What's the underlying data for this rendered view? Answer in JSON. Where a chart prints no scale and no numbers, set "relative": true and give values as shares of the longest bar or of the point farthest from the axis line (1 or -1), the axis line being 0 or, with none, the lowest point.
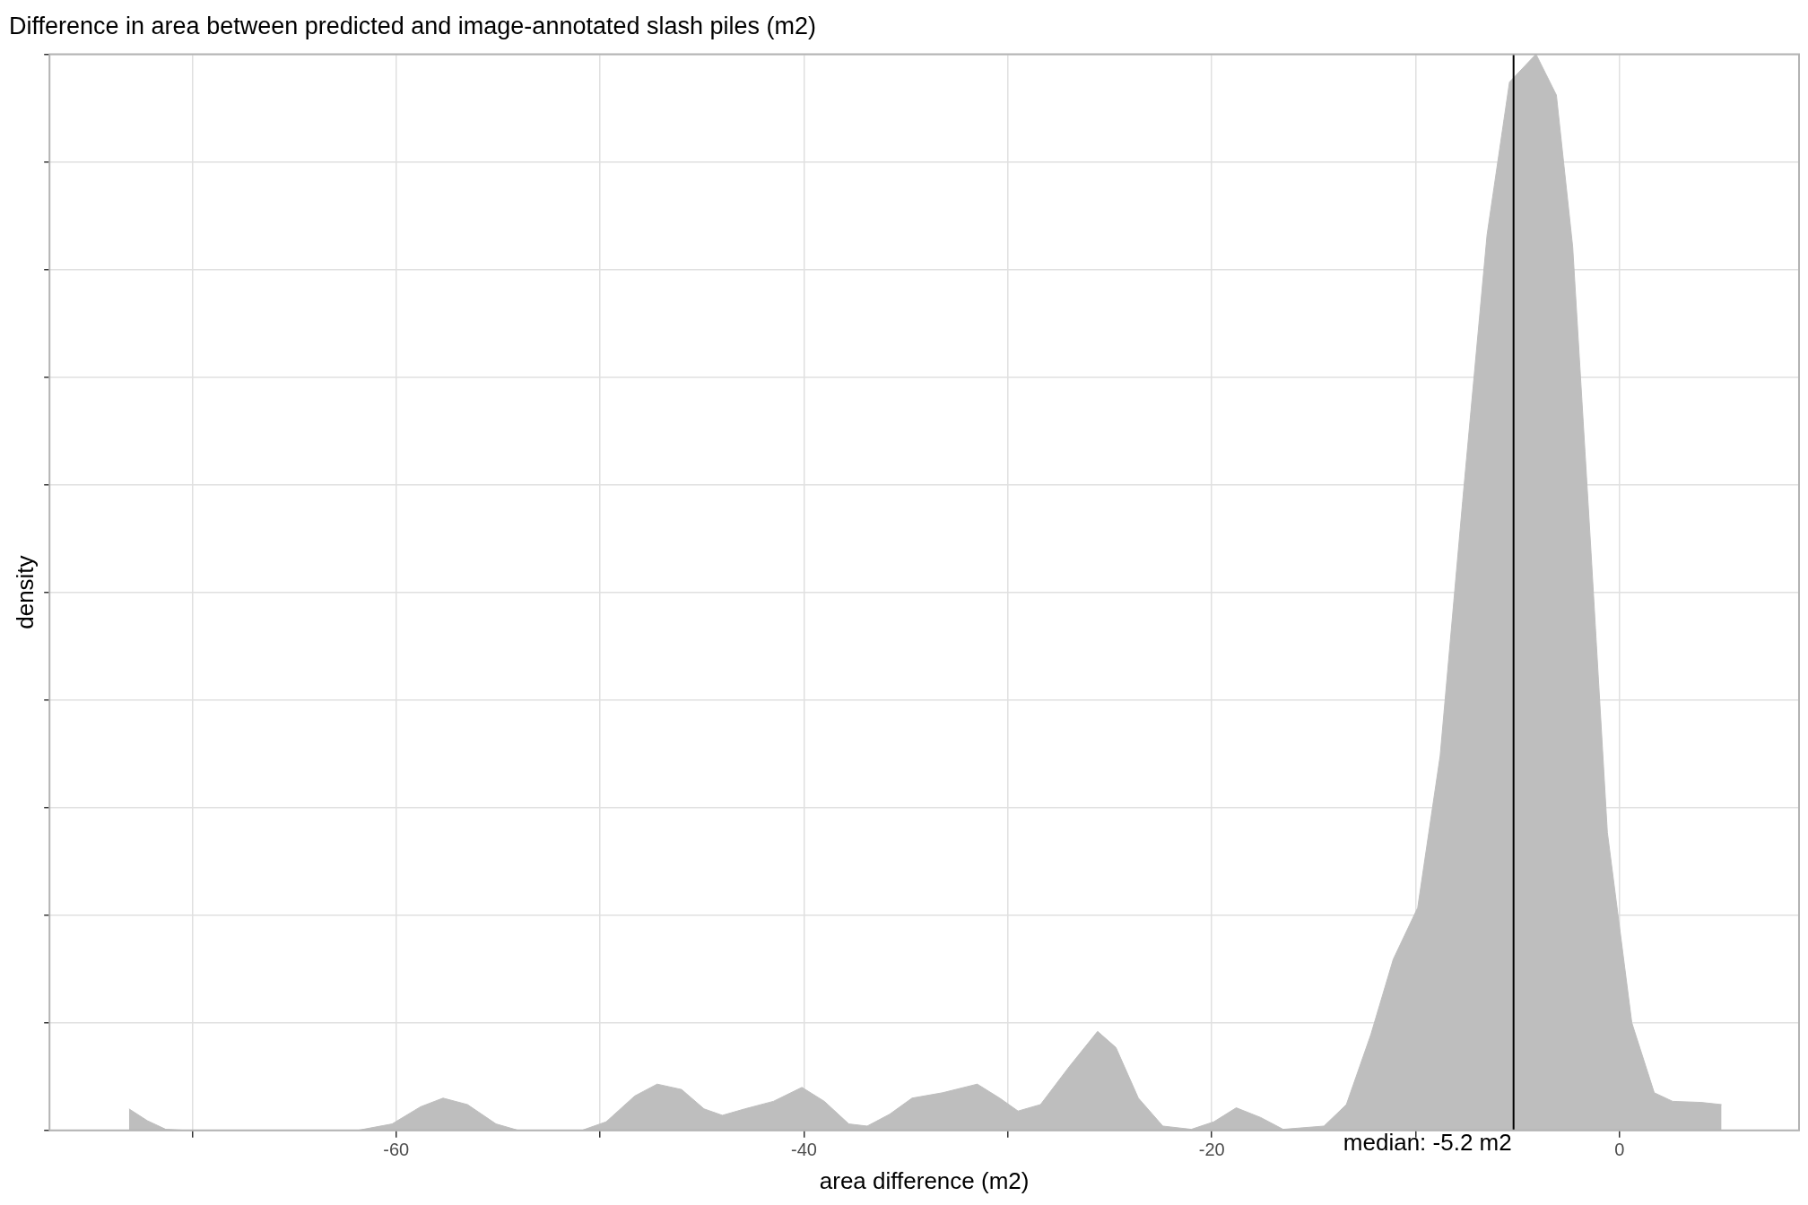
{
  "chart_data": {
    "type": "area",
    "title": "Difference in area between predicted and image-annotated slash piles (m2)",
    "xlabel": "area difference (m2)",
    "ylabel": "density",
    "relative": true,
    "grid": true,
    "legend": false,
    "marker": "none",
    "xlim": [
      -77,
      8.8
    ],
    "xticks": [
      {
        "value": -70,
        "label": null
      },
      -60,
      {
        "value": -50,
        "label": null
      },
      -40,
      {
        "value": -30,
        "label": null
      },
      -20,
      {
        "value": -10,
        "label": null
      },
      0
    ],
    "series": [
      {
        "color": "#bebebe",
        "x": [
          -73.1,
          -72.2,
          -71.3,
          -70.2,
          -61.9,
          -60.2,
          -58.8,
          -57.7,
          -56.5,
          -55.1,
          -54.0,
          -50.9,
          -49.7,
          -48.3,
          -47.2,
          -46.0,
          -44.9,
          -44.0,
          -42.9,
          -41.5,
          -40.1,
          -39.0,
          -37.8,
          -36.9,
          -35.8,
          -34.7,
          -33.2,
          -31.5,
          -30.4,
          -29.5,
          -28.4,
          -27.0,
          -25.6,
          -24.7,
          -23.6,
          -22.4,
          -21.0,
          -19.9,
          -18.8,
          -17.6,
          -16.5,
          -14.5,
          -13.4,
          -12.2,
          -11.1,
          -9.9,
          -8.8,
          -7.7,
          -6.5,
          -5.4,
          -4.1,
          -3.1,
          -2.3,
          -1.4,
          -0.6,
          0.6,
          1.7,
          2.6,
          4.0,
          5.0
        ],
        "values": [
          0.02,
          0.009,
          0.001,
          0,
          0,
          0.006,
          0.022,
          0.03,
          0.024,
          0.006,
          0,
          0,
          0.008,
          0.032,
          0.043,
          0.038,
          0.02,
          0.014,
          0.02,
          0.027,
          0.04,
          0.027,
          0.006,
          0.004,
          0.015,
          0.03,
          0.035,
          0.043,
          0.03,
          0.018,
          0.024,
          0.059,
          0.092,
          0.077,
          0.03,
          0.004,
          0.001,
          0.008,
          0.021,
          0.012,
          0.001,
          0.004,
          0.024,
          0.089,
          0.159,
          0.207,
          0.348,
          0.584,
          0.832,
          0.974,
          1.0,
          0.962,
          0.821,
          0.537,
          0.277,
          0.1,
          0.035,
          0.027,
          0.026,
          0.024
        ]
      }
    ],
    "ref_lines": [
      {
        "axis": "x",
        "value": -5.2,
        "label": "median: -5.2 m2",
        "color": "#000000"
      }
    ]
  }
}
